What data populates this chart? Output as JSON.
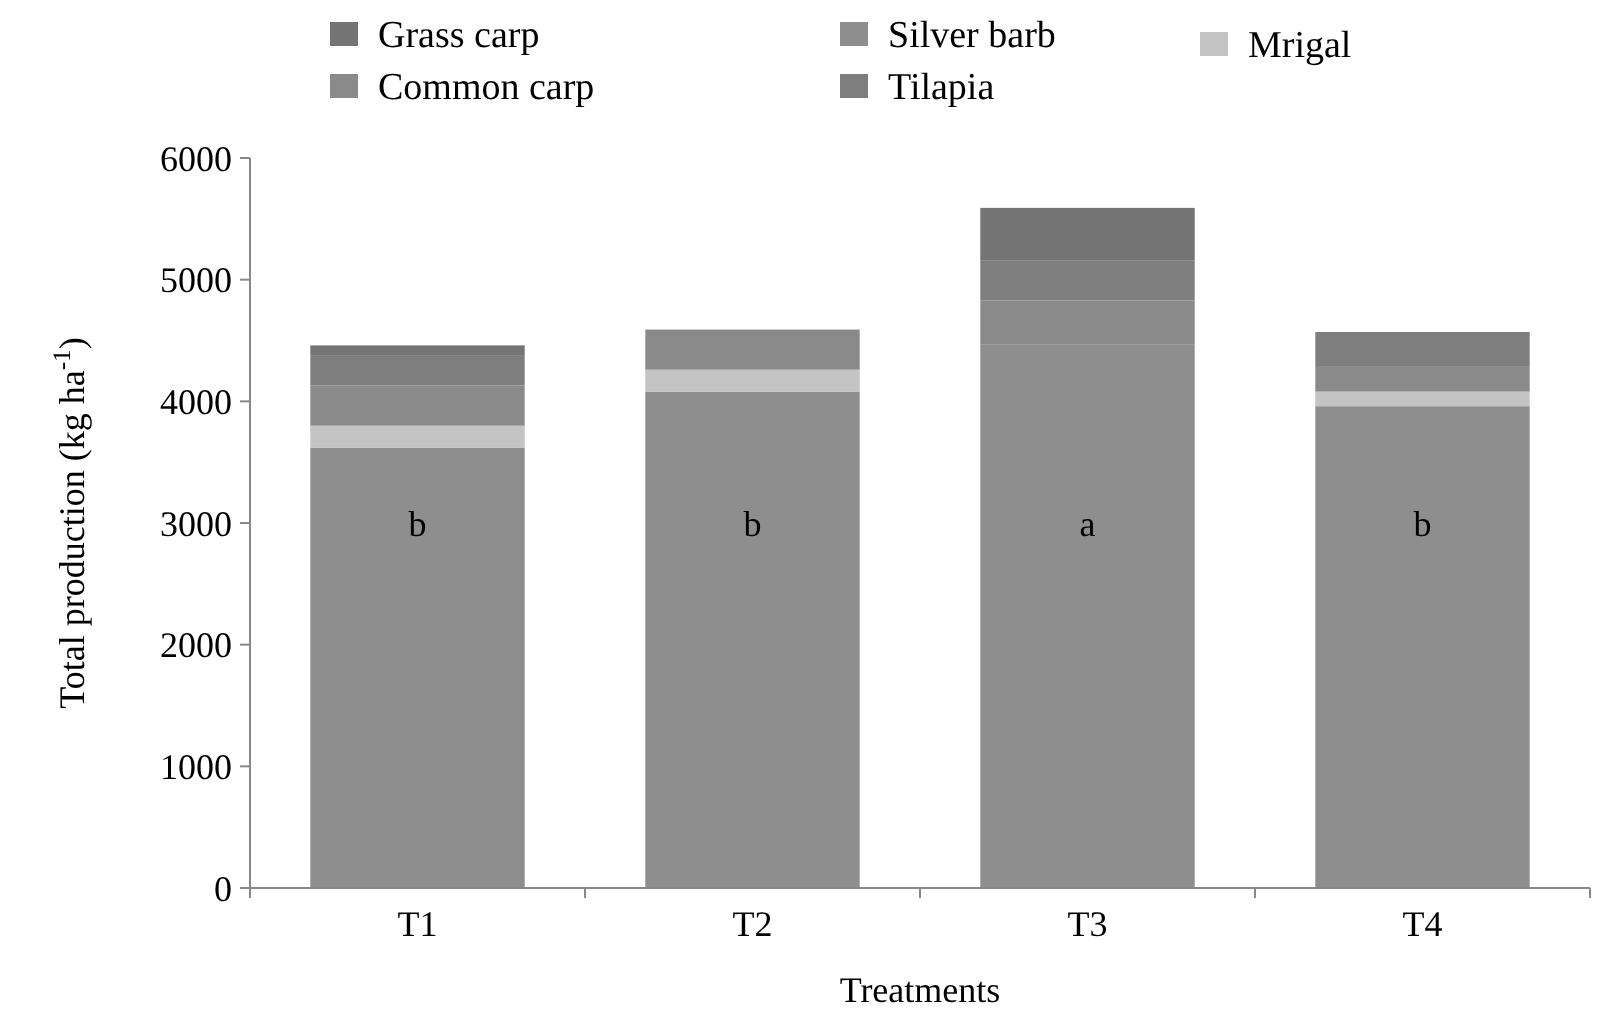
{
  "chart_data": {
    "type": "bar",
    "stacked": true,
    "xlabel": "Treatments",
    "ylabel": "Total production (kg ha$^{-1}$)",
    "categories": [
      "T1",
      "T2",
      "T3",
      "T4"
    ],
    "series": [
      {
        "name": "Silver barb",
        "color": "#8e8e8e",
        "values": [
          3620,
          4080,
          4470,
          3960
        ]
      },
      {
        "name": "Mrigal",
        "color": "#c4c4c4",
        "values": [
          180,
          180,
          0,
          120
        ]
      },
      {
        "name": "Common carp",
        "color": "#8a8a8a",
        "values": [
          330,
          330,
          360,
          210
        ]
      },
      {
        "name": "Tilapia",
        "color": "#7e7e7e",
        "values": [
          250,
          0,
          330,
          280
        ]
      },
      {
        "name": "Grass carp",
        "color": "#747474",
        "values": [
          80,
          0,
          430,
          0
        ]
      }
    ],
    "ylim": [
      0,
      6000
    ],
    "yticks": [
      0,
      1000,
      2000,
      3000,
      4000,
      5000,
      6000
    ],
    "grid": false,
    "legend": "top",
    "annotations": [
      "b",
      "b",
      "a",
      "b"
    ]
  }
}
